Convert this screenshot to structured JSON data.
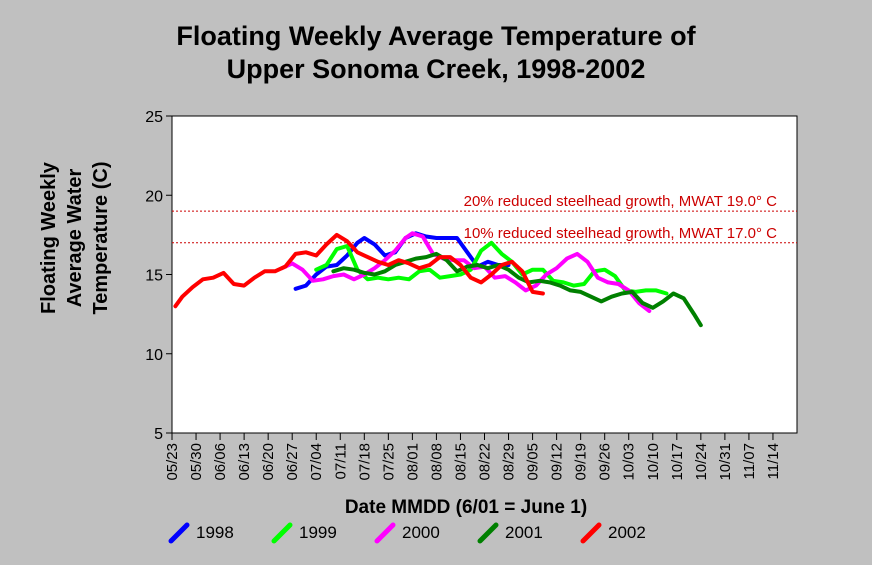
{
  "title_line1": "Floating Weekly Average Temperature of",
  "title_line2": "Upper Sonoma Creek, 1998-2002",
  "chart_data": {
    "type": "line",
    "title": "Floating Weekly Average Temperature of Upper Sonoma Creek, 1998-2002",
    "xlabel": "Date MMDD (6/01 = June 1)",
    "ylabel_lines": [
      "Floating Weekly",
      "Average Water",
      "Temperature (C)"
    ],
    "ylim": [
      5,
      25
    ],
    "yticks": [
      5,
      10,
      15,
      20,
      25
    ],
    "xlim": [
      "05/23",
      "11/21"
    ],
    "xtick_labels": [
      "05/23",
      "05/30",
      "06/06",
      "06/13",
      "06/20",
      "06/27",
      "07/04",
      "07/11",
      "07/18",
      "07/25",
      "08/01",
      "08/08",
      "08/15",
      "08/22",
      "08/29",
      "09/05",
      "09/12",
      "09/19",
      "09/26",
      "10/03",
      "10/10",
      "10/17",
      "10/24",
      "10/31",
      "11/07",
      "11/14"
    ],
    "grid": false,
    "legend_position": "bottom",
    "reference_lines": [
      {
        "y": 19.0,
        "label": "20% reduced steelhead growth, MWAT 19.0° C",
        "color": "#cc0000"
      },
      {
        "y": 17.0,
        "label": "10% reduced steelhead growth, MWAT 17.0° C",
        "color": "#cc0000"
      }
    ],
    "series": [
      {
        "name": "1998",
        "color": "#0000ff",
        "points": [
          [
            "06/28",
            14.1
          ],
          [
            "07/01",
            14.3
          ],
          [
            "07/04",
            15.0
          ],
          [
            "07/07",
            15.5
          ],
          [
            "07/10",
            15.6
          ],
          [
            "07/13",
            16.2
          ],
          [
            "07/16",
            17.0
          ],
          [
            "07/18",
            17.3
          ],
          [
            "07/21",
            16.9
          ],
          [
            "07/24",
            16.2
          ],
          [
            "07/27",
            16.4
          ],
          [
            "07/30",
            17.3
          ],
          [
            "08/02",
            17.6
          ],
          [
            "08/05",
            17.4
          ],
          [
            "08/08",
            17.3
          ],
          [
            "08/11",
            17.3
          ],
          [
            "08/14",
            17.3
          ],
          [
            "08/17",
            16.4
          ],
          [
            "08/20",
            15.5
          ],
          [
            "08/23",
            15.8
          ],
          [
            "08/26",
            15.6
          ],
          [
            "08/29",
            15.6
          ]
        ]
      },
      {
        "name": "1999",
        "color": "#00ff00",
        "points": [
          [
            "07/04",
            15.3
          ],
          [
            "07/07",
            15.6
          ],
          [
            "07/10",
            16.6
          ],
          [
            "07/13",
            16.8
          ],
          [
            "07/16",
            15.3
          ],
          [
            "07/19",
            14.7
          ],
          [
            "07/22",
            14.8
          ],
          [
            "07/25",
            14.7
          ],
          [
            "07/28",
            14.8
          ],
          [
            "07/31",
            14.7
          ],
          [
            "08/03",
            15.2
          ],
          [
            "08/06",
            15.3
          ],
          [
            "08/09",
            14.8
          ],
          [
            "08/12",
            14.9
          ],
          [
            "08/15",
            15.0
          ],
          [
            "08/18",
            15.3
          ],
          [
            "08/21",
            16.5
          ],
          [
            "08/24",
            17.0
          ],
          [
            "08/27",
            16.3
          ],
          [
            "08/30",
            15.8
          ],
          [
            "09/02",
            15.0
          ],
          [
            "09/05",
            15.3
          ],
          [
            "09/08",
            15.3
          ],
          [
            "09/11",
            14.6
          ],
          [
            "09/14",
            14.5
          ],
          [
            "09/17",
            14.3
          ],
          [
            "09/20",
            14.4
          ],
          [
            "09/23",
            15.2
          ],
          [
            "09/26",
            15.3
          ],
          [
            "09/29",
            14.9
          ],
          [
            "10/02",
            14.0
          ],
          [
            "10/05",
            13.9
          ],
          [
            "10/08",
            14.0
          ],
          [
            "10/11",
            14.0
          ],
          [
            "10/14",
            13.8
          ]
        ]
      },
      {
        "name": "2000",
        "color": "#ff00ff",
        "points": [
          [
            "06/24",
            15.4
          ],
          [
            "06/27",
            15.7
          ],
          [
            "06/30",
            15.3
          ],
          [
            "07/03",
            14.6
          ],
          [
            "07/06",
            14.7
          ],
          [
            "07/09",
            14.9
          ],
          [
            "07/12",
            15.0
          ],
          [
            "07/15",
            14.7
          ],
          [
            "07/18",
            15.0
          ],
          [
            "07/21",
            15.4
          ],
          [
            "07/24",
            15.9
          ],
          [
            "07/27",
            16.5
          ],
          [
            "07/30",
            17.3
          ],
          [
            "08/01",
            17.6
          ],
          [
            "08/04",
            17.4
          ],
          [
            "08/07",
            16.3
          ],
          [
            "08/10",
            16.0
          ],
          [
            "08/13",
            15.9
          ],
          [
            "08/16",
            15.9
          ],
          [
            "08/19",
            15.4
          ],
          [
            "08/22",
            15.5
          ],
          [
            "08/25",
            14.8
          ],
          [
            "08/28",
            14.9
          ],
          [
            "08/31",
            14.5
          ],
          [
            "09/03",
            14.0
          ],
          [
            "09/06",
            14.3
          ],
          [
            "09/09",
            15.0
          ],
          [
            "09/12",
            15.4
          ],
          [
            "09/15",
            16.0
          ],
          [
            "09/18",
            16.3
          ],
          [
            "09/21",
            15.8
          ],
          [
            "09/24",
            14.8
          ],
          [
            "09/27",
            14.5
          ],
          [
            "09/30",
            14.4
          ],
          [
            "10/03",
            14.0
          ],
          [
            "10/06",
            13.2
          ],
          [
            "10/09",
            12.7
          ]
        ]
      },
      {
        "name": "2001",
        "color": "#008000",
        "points": [
          [
            "07/09",
            15.2
          ],
          [
            "07/12",
            15.4
          ],
          [
            "07/15",
            15.3
          ],
          [
            "07/18",
            15.1
          ],
          [
            "07/21",
            15.0
          ],
          [
            "07/24",
            15.2
          ],
          [
            "07/27",
            15.6
          ],
          [
            "07/30",
            15.8
          ],
          [
            "08/02",
            16.0
          ],
          [
            "08/05",
            16.1
          ],
          [
            "08/08",
            16.3
          ],
          [
            "08/11",
            15.9
          ],
          [
            "08/14",
            15.2
          ],
          [
            "08/17",
            15.5
          ],
          [
            "08/20",
            15.6
          ],
          [
            "08/23",
            15.4
          ],
          [
            "08/26",
            15.6
          ],
          [
            "08/29",
            15.3
          ],
          [
            "09/01",
            14.8
          ],
          [
            "09/04",
            14.5
          ],
          [
            "09/07",
            14.6
          ],
          [
            "09/10",
            14.5
          ],
          [
            "09/13",
            14.3
          ],
          [
            "09/16",
            14.0
          ],
          [
            "09/19",
            13.9
          ],
          [
            "09/22",
            13.6
          ],
          [
            "09/25",
            13.3
          ],
          [
            "09/28",
            13.6
          ],
          [
            "10/01",
            13.8
          ],
          [
            "10/04",
            13.9
          ],
          [
            "10/07",
            13.2
          ],
          [
            "10/10",
            12.9
          ],
          [
            "10/13",
            13.3
          ],
          [
            "10/16",
            13.8
          ],
          [
            "10/19",
            13.5
          ],
          [
            "10/22",
            12.5
          ],
          [
            "10/24",
            11.8
          ]
        ]
      },
      {
        "name": "2002",
        "color": "#ff0000",
        "points": [
          [
            "05/24",
            13.0
          ],
          [
            "05/26",
            13.6
          ],
          [
            "05/29",
            14.2
          ],
          [
            "06/01",
            14.7
          ],
          [
            "06/04",
            14.8
          ],
          [
            "06/07",
            15.1
          ],
          [
            "06/10",
            14.4
          ],
          [
            "06/13",
            14.3
          ],
          [
            "06/16",
            14.8
          ],
          [
            "06/19",
            15.2
          ],
          [
            "06/22",
            15.2
          ],
          [
            "06/25",
            15.5
          ],
          [
            "06/28",
            16.3
          ],
          [
            "07/01",
            16.4
          ],
          [
            "07/04",
            16.2
          ],
          [
            "07/07",
            16.9
          ],
          [
            "07/10",
            17.5
          ],
          [
            "07/13",
            17.1
          ],
          [
            "07/16",
            16.4
          ],
          [
            "07/19",
            16.1
          ],
          [
            "07/22",
            15.8
          ],
          [
            "07/25",
            15.6
          ],
          [
            "07/28",
            15.9
          ],
          [
            "07/31",
            15.7
          ],
          [
            "08/03",
            15.4
          ],
          [
            "08/06",
            15.6
          ],
          [
            "08/09",
            16.1
          ],
          [
            "08/12",
            16.1
          ],
          [
            "08/15",
            15.6
          ],
          [
            "08/18",
            14.8
          ],
          [
            "08/21",
            14.5
          ],
          [
            "08/24",
            15.0
          ],
          [
            "08/27",
            15.6
          ],
          [
            "08/30",
            15.8
          ],
          [
            "09/02",
            15.2
          ],
          [
            "09/05",
            13.9
          ],
          [
            "09/08",
            13.8
          ]
        ]
      }
    ]
  }
}
